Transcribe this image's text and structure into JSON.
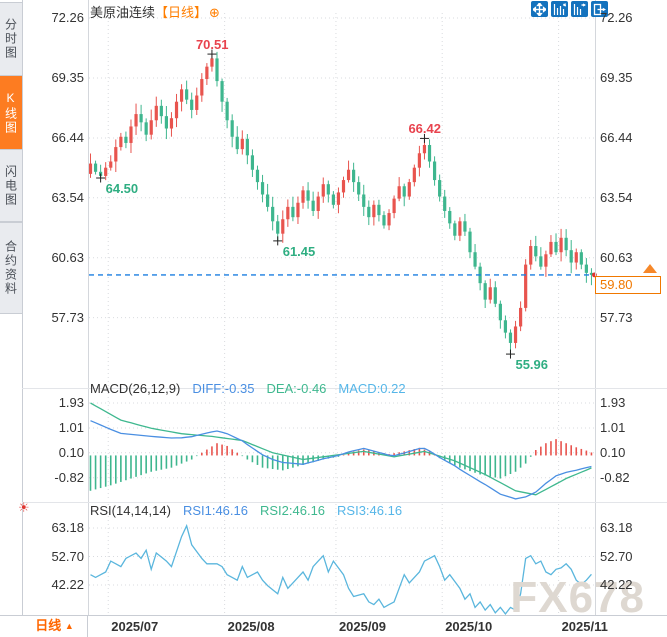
{
  "header": {
    "symbol_name": "美原油连续",
    "period_tag": "【日线】",
    "add_indicator_glyph": "⊕"
  },
  "sidebar": {
    "items": [
      {
        "label": "分时图",
        "active": false
      },
      {
        "label": "K线图",
        "active": true
      },
      {
        "label": "闪电图",
        "active": false
      },
      {
        "label": "合约资料",
        "active": false
      }
    ]
  },
  "toolbar": {
    "icons": [
      "crosshair-pan",
      "y-axis-scale",
      "x-axis-scale",
      "goto-latest"
    ]
  },
  "price_tag": {
    "value": "59.80"
  },
  "period_selector": {
    "label": "日线",
    "arrow": "▲"
  },
  "watermark": "FX678",
  "colors": {
    "up": "#e8544e",
    "down": "#3eb68e",
    "accent_orange": "#fd7c21",
    "anno_red": "#e8434e",
    "anno_green": "#2fae82",
    "diff_blue": "#4a8fe2",
    "dea_teal": "#3fb88f",
    "macd_cyan": "#56b6e8",
    "rsi_line": "#5ab6dd",
    "last_price_line": "#1a7ee0",
    "toolbar_blue": "#1472bd"
  },
  "chart_data": {
    "type": "candlestick+macd+rsi",
    "title": "美原油连续 日线",
    "main": {
      "y_ticks": [
        72.26,
        69.35,
        66.44,
        63.54,
        60.63,
        57.73
      ],
      "x_labels": [
        {
          "label": "2025/07",
          "index": 4
        },
        {
          "label": "2025/08",
          "index": 27
        },
        {
          "label": "2025/09",
          "index": 49
        },
        {
          "label": "2025/10",
          "index": 70
        },
        {
          "label": "2025/11",
          "index": 93
        }
      ],
      "first_open": 64.7,
      "closes": [
        65.2,
        64.8,
        64.6,
        65.0,
        65.3,
        66.0,
        66.5,
        66.2,
        67.0,
        67.6,
        67.2,
        66.6,
        67.3,
        68.0,
        67.5,
        66.9,
        67.4,
        68.2,
        68.8,
        68.3,
        67.8,
        68.5,
        69.3,
        69.9,
        70.3,
        69.2,
        68.2,
        67.3,
        66.5,
        65.9,
        66.4,
        65.6,
        64.9,
        64.3,
        63.7,
        63.1,
        62.4,
        61.8,
        62.5,
        63.1,
        62.6,
        63.3,
        63.9,
        63.4,
        62.9,
        63.6,
        64.2,
        63.7,
        63.2,
        63.8,
        64.4,
        64.9,
        64.3,
        63.7,
        63.1,
        62.6,
        63.2,
        62.7,
        62.2,
        62.8,
        63.5,
        64.1,
        63.6,
        64.3,
        65.0,
        65.7,
        66.1,
        65.3,
        64.4,
        63.6,
        62.9,
        62.3,
        61.7,
        62.4,
        61.9,
        60.9,
        60.2,
        59.4,
        58.6,
        59.2,
        58.4,
        57.6,
        57.0,
        56.5,
        57.3,
        58.2,
        60.3,
        61.2,
        60.7,
        60.2,
        60.8,
        61.4,
        60.9,
        61.6,
        61.0,
        60.4,
        60.9,
        60.3,
        59.9,
        59.8
      ],
      "annotations": [
        {
          "index": 24,
          "price": 70.51,
          "text": "70.51",
          "side": "above",
          "color": "#e8434e"
        },
        {
          "index": 2,
          "price": 64.5,
          "text": "64.50",
          "side": "below",
          "color": "#2fae82"
        },
        {
          "index": 37,
          "price": 61.45,
          "text": "61.45",
          "side": "below",
          "color": "#2fae82"
        },
        {
          "index": 66,
          "price": 66.42,
          "text": "66.42",
          "side": "above",
          "color": "#e8434e"
        },
        {
          "index": 83,
          "price": 55.96,
          "text": "55.96",
          "side": "below",
          "color": "#2fae82"
        }
      ],
      "last_price": 59.8
    },
    "macd": {
      "title": "MACD(26,12,9)",
      "diff_label": "DIFF:-0.35",
      "dea_label": "DEA:-0.46",
      "macd_label": "MACD:0.22",
      "y_ticks": [
        1.93,
        1.01,
        0.1,
        -0.82
      ],
      "dea_keyframes": [
        [
          0,
          1.93
        ],
        [
          6,
          1.3
        ],
        [
          12,
          1.0
        ],
        [
          18,
          0.8
        ],
        [
          24,
          0.7
        ],
        [
          30,
          0.55
        ],
        [
          36,
          0.1
        ],
        [
          42,
          -0.15
        ],
        [
          48,
          0.0
        ],
        [
          54,
          0.15
        ],
        [
          60,
          -0.05
        ],
        [
          66,
          0.15
        ],
        [
          72,
          -0.2
        ],
        [
          78,
          -0.7
        ],
        [
          84,
          -1.3
        ],
        [
          88,
          -1.45
        ],
        [
          94,
          -0.85
        ],
        [
          99,
          -0.46
        ]
      ],
      "hist_keyframes": [
        [
          0,
          -1.3
        ],
        [
          4,
          -1.1
        ],
        [
          8,
          -0.85
        ],
        [
          12,
          -0.6
        ],
        [
          16,
          -0.45
        ],
        [
          20,
          -0.15
        ],
        [
          22,
          0.1
        ],
        [
          25,
          0.45
        ],
        [
          27,
          0.35
        ],
        [
          29,
          0.1
        ],
        [
          31,
          -0.15
        ],
        [
          34,
          -0.45
        ],
        [
          38,
          -0.55
        ],
        [
          42,
          -0.35
        ],
        [
          46,
          -0.15
        ],
        [
          49,
          -0.05
        ],
        [
          51,
          0.1
        ],
        [
          54,
          0.22
        ],
        [
          57,
          0.12
        ],
        [
          59,
          0.05
        ],
        [
          62,
          0.15
        ],
        [
          65,
          0.28
        ],
        [
          67,
          0.15
        ],
        [
          69,
          -0.1
        ],
        [
          73,
          -0.45
        ],
        [
          77,
          -0.7
        ],
        [
          81,
          -0.85
        ],
        [
          84,
          -0.6
        ],
        [
          86,
          -0.3
        ],
        [
          88,
          0.2
        ],
        [
          90,
          0.45
        ],
        [
          92,
          0.6
        ],
        [
          94,
          0.45
        ],
        [
          96,
          0.3
        ],
        [
          98,
          0.18
        ],
        [
          99,
          0.11
        ]
      ]
    },
    "rsi": {
      "title": "RSI(14,14,14)",
      "rsi1_label": "RSI1:46.16",
      "rsi2_label": "RSI2:46.16",
      "rsi3_label": "RSI3:46.16",
      "y_ticks": [
        63.18,
        52.7,
        42.22
      ],
      "keyframes": [
        [
          0,
          46
        ],
        [
          1,
          45
        ],
        [
          3,
          47
        ],
        [
          4,
          51
        ],
        [
          6,
          49
        ],
        [
          7,
          52
        ],
        [
          9,
          54
        ],
        [
          10,
          52
        ],
        [
          11,
          55
        ],
        [
          12,
          48
        ],
        [
          13,
          54
        ],
        [
          15,
          51
        ],
        [
          16,
          49
        ],
        [
          18,
          60
        ],
        [
          19,
          64
        ],
        [
          20,
          57
        ],
        [
          22,
          52
        ],
        [
          23,
          50
        ],
        [
          25,
          50
        ],
        [
          26,
          49
        ],
        [
          27,
          46
        ],
        [
          29,
          44
        ],
        [
          30,
          49
        ],
        [
          31,
          45
        ],
        [
          33,
          47
        ],
        [
          34,
          44
        ],
        [
          35,
          42
        ],
        [
          37,
          39
        ],
        [
          38,
          45
        ],
        [
          39,
          41
        ],
        [
          40,
          43
        ],
        [
          42,
          47
        ],
        [
          43,
          44
        ],
        [
          44,
          49
        ],
        [
          46,
          53
        ],
        [
          47,
          47
        ],
        [
          48,
          51
        ],
        [
          50,
          46
        ],
        [
          51,
          41
        ],
        [
          52,
          38
        ],
        [
          54,
          39
        ],
        [
          55,
          36
        ],
        [
          56,
          35
        ],
        [
          57,
          37
        ],
        [
          58,
          34
        ],
        [
          60,
          36
        ],
        [
          61,
          41
        ],
        [
          62,
          46
        ],
        [
          63,
          43
        ],
        [
          65,
          47
        ],
        [
          66,
          51
        ],
        [
          68,
          53
        ],
        [
          69,
          49
        ],
        [
          70,
          44
        ],
        [
          71,
          46
        ],
        [
          73,
          41
        ],
        [
          74,
          37
        ],
        [
          75,
          39
        ],
        [
          76,
          34
        ],
        [
          77,
          36
        ],
        [
          78,
          33
        ],
        [
          79,
          35
        ],
        [
          80,
          32
        ],
        [
          81,
          34
        ],
        [
          82,
          31.6
        ],
        [
          83,
          34
        ],
        [
          84,
          33
        ],
        [
          85,
          39
        ],
        [
          86,
          52
        ],
        [
          87,
          53
        ],
        [
          88,
          50
        ],
        [
          89,
          51
        ],
        [
          90,
          47
        ],
        [
          91,
          46
        ],
        [
          92,
          48
        ],
        [
          93,
          48.5
        ],
        [
          94,
          50
        ],
        [
          95,
          48
        ],
        [
          96,
          44
        ],
        [
          97,
          42.5
        ],
        [
          98,
          44
        ],
        [
          99,
          46.16
        ]
      ]
    }
  }
}
